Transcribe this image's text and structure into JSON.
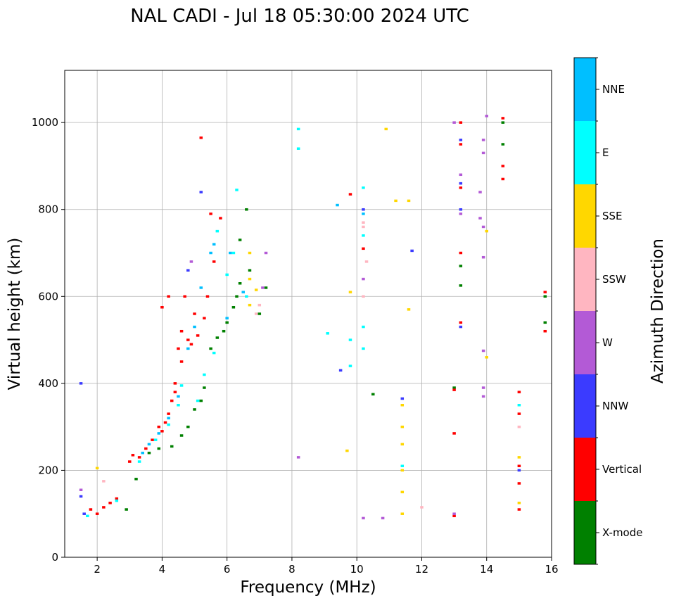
{
  "chart_data": {
    "type": "scatter",
    "title": "NAL CADI - Jul 18 05:30:00 2024 UTC",
    "xlabel": "Frequency (MHz)",
    "ylabel": "Virtual height (km)",
    "xlim": [
      1,
      16
    ],
    "ylim": [
      0,
      1120
    ],
    "xticks": [
      2,
      4,
      6,
      8,
      10,
      12,
      14,
      16
    ],
    "yticks": [
      0,
      200,
      400,
      600,
      800,
      1000
    ],
    "grid": true,
    "colorbar": {
      "label": "Azimuth Direction",
      "categories": [
        "X-mode",
        "Vertical",
        "NNW",
        "W",
        "SSW",
        "SSE",
        "E",
        "NNE"
      ],
      "colors": [
        "#008000",
        "#ff0000",
        "#3b3bff",
        "#b35ad6",
        "#ffb6c1",
        "#ffd700",
        "#00ffff",
        "#00bfff"
      ]
    },
    "series": [
      {
        "name": "X-mode",
        "points": [
          [
            2.9,
            110
          ],
          [
            3.2,
            180
          ],
          [
            3.6,
            240
          ],
          [
            3.9,
            250
          ],
          [
            4.3,
            255
          ],
          [
            4.6,
            280
          ],
          [
            4.8,
            300
          ],
          [
            5.0,
            340
          ],
          [
            5.2,
            360
          ],
          [
            5.3,
            390
          ],
          [
            5.5,
            480
          ],
          [
            5.7,
            505
          ],
          [
            5.9,
            520
          ],
          [
            6.0,
            540
          ],
          [
            6.2,
            575
          ],
          [
            6.3,
            600
          ],
          [
            6.4,
            630
          ],
          [
            6.4,
            730
          ],
          [
            6.6,
            800
          ],
          [
            6.7,
            660
          ],
          [
            7.0,
            560
          ],
          [
            7.2,
            620
          ],
          [
            10.5,
            375
          ],
          [
            13.0,
            390
          ],
          [
            13.2,
            625
          ],
          [
            13.2,
            670
          ],
          [
            14.5,
            1000
          ],
          [
            14.5,
            950
          ],
          [
            15.8,
            600
          ],
          [
            15.8,
            540
          ]
        ]
      },
      {
        "name": "Vertical",
        "points": [
          [
            1.8,
            110
          ],
          [
            2.0,
            100
          ],
          [
            2.2,
            115
          ],
          [
            2.4,
            125
          ],
          [
            2.6,
            135
          ],
          [
            3.0,
            220
          ],
          [
            3.1,
            235
          ],
          [
            3.3,
            230
          ],
          [
            3.5,
            250
          ],
          [
            3.7,
            270
          ],
          [
            3.9,
            300
          ],
          [
            4.0,
            290
          ],
          [
            4.0,
            575
          ],
          [
            4.1,
            310
          ],
          [
            4.2,
            330
          ],
          [
            4.2,
            600
          ],
          [
            4.3,
            360
          ],
          [
            4.4,
            380
          ],
          [
            4.4,
            400
          ],
          [
            4.5,
            480
          ],
          [
            4.6,
            520
          ],
          [
            4.6,
            450
          ],
          [
            4.7,
            600
          ],
          [
            4.8,
            500
          ],
          [
            4.9,
            490
          ],
          [
            5.0,
            560
          ],
          [
            5.1,
            510
          ],
          [
            5.2,
            965
          ],
          [
            5.3,
            550
          ],
          [
            5.4,
            600
          ],
          [
            5.5,
            790
          ],
          [
            5.6,
            680
          ],
          [
            5.8,
            780
          ],
          [
            9.8,
            835
          ],
          [
            10.2,
            710
          ],
          [
            13.0,
            95
          ],
          [
            13.0,
            285
          ],
          [
            13.0,
            385
          ],
          [
            13.2,
            700
          ],
          [
            13.2,
            850
          ],
          [
            13.2,
            950
          ],
          [
            13.2,
            1000
          ],
          [
            13.2,
            540
          ],
          [
            14.5,
            870
          ],
          [
            14.5,
            900
          ],
          [
            14.5,
            1010
          ],
          [
            15.0,
            110
          ],
          [
            15.0,
            170
          ],
          [
            15.0,
            210
          ],
          [
            15.0,
            330
          ],
          [
            15.0,
            380
          ],
          [
            15.8,
            520
          ],
          [
            15.8,
            610
          ]
        ]
      },
      {
        "name": "NNW",
        "points": [
          [
            1.5,
            140
          ],
          [
            1.5,
            400
          ],
          [
            1.6,
            100
          ],
          [
            4.8,
            660
          ],
          [
            5.2,
            840
          ],
          [
            9.5,
            430
          ],
          [
            10.2,
            800
          ],
          [
            11.4,
            365
          ],
          [
            11.7,
            705
          ],
          [
            13.2,
            800
          ],
          [
            13.2,
            860
          ],
          [
            13.2,
            960
          ],
          [
            13.2,
            530
          ],
          [
            15.0,
            200
          ]
        ]
      },
      {
        "name": "W",
        "points": [
          [
            1.5,
            155
          ],
          [
            4.9,
            680
          ],
          [
            7.1,
            620
          ],
          [
            7.2,
            700
          ],
          [
            8.2,
            230
          ],
          [
            10.2,
            90
          ],
          [
            10.2,
            640
          ],
          [
            10.8,
            90
          ],
          [
            13.0,
            1000
          ],
          [
            13.0,
            100
          ],
          [
            13.2,
            880
          ],
          [
            13.2,
            790
          ],
          [
            13.8,
            780
          ],
          [
            13.8,
            840
          ],
          [
            13.9,
            370
          ],
          [
            13.9,
            390
          ],
          [
            13.9,
            475
          ],
          [
            13.9,
            760
          ],
          [
            13.9,
            690
          ],
          [
            13.9,
            930
          ],
          [
            13.9,
            960
          ],
          [
            14.0,
            1015
          ]
        ]
      },
      {
        "name": "SSW",
        "points": [
          [
            2.2,
            175
          ],
          [
            6.9,
            560
          ],
          [
            7.0,
            580
          ],
          [
            10.2,
            600
          ],
          [
            10.2,
            760
          ],
          [
            10.2,
            770
          ],
          [
            10.3,
            680
          ],
          [
            12.0,
            115
          ],
          [
            15.0,
            300
          ]
        ]
      },
      {
        "name": "SSE",
        "points": [
          [
            2.0,
            205
          ],
          [
            6.7,
            580
          ],
          [
            6.7,
            640
          ],
          [
            6.7,
            700
          ],
          [
            6.9,
            615
          ],
          [
            9.7,
            245
          ],
          [
            9.8,
            610
          ],
          [
            10.9,
            985
          ],
          [
            11.2,
            820
          ],
          [
            11.4,
            100
          ],
          [
            11.4,
            150
          ],
          [
            11.4,
            200
          ],
          [
            11.4,
            260
          ],
          [
            11.4,
            300
          ],
          [
            11.4,
            350
          ],
          [
            11.6,
            570
          ],
          [
            11.6,
            820
          ],
          [
            14.0,
            460
          ],
          [
            14.0,
            750
          ],
          [
            15.0,
            230
          ],
          [
            15.0,
            125
          ]
        ]
      },
      {
        "name": "E",
        "points": [
          [
            1.7,
            95
          ],
          [
            2.6,
            130
          ],
          [
            3.3,
            220
          ],
          [
            3.8,
            270
          ],
          [
            4.2,
            305
          ],
          [
            4.5,
            350
          ],
          [
            4.6,
            395
          ],
          [
            5.1,
            360
          ],
          [
            5.3,
            420
          ],
          [
            5.6,
            470
          ],
          [
            5.7,
            750
          ],
          [
            6.0,
            650
          ],
          [
            6.2,
            700
          ],
          [
            6.3,
            845
          ],
          [
            6.6,
            600
          ],
          [
            8.2,
            985
          ],
          [
            8.2,
            940
          ],
          [
            9.1,
            515
          ],
          [
            9.8,
            500
          ],
          [
            9.8,
            440
          ],
          [
            10.2,
            850
          ],
          [
            10.2,
            740
          ],
          [
            10.2,
            530
          ],
          [
            10.2,
            480
          ],
          [
            11.4,
            210
          ],
          [
            15.0,
            350
          ]
        ]
      },
      {
        "name": "NNE",
        "points": [
          [
            3.4,
            240
          ],
          [
            3.6,
            260
          ],
          [
            3.9,
            285
          ],
          [
            4.2,
            320
          ],
          [
            4.5,
            370
          ],
          [
            4.8,
            480
          ],
          [
            5.0,
            530
          ],
          [
            5.2,
            620
          ],
          [
            5.5,
            700
          ],
          [
            5.6,
            720
          ],
          [
            6.0,
            550
          ],
          [
            6.1,
            700
          ],
          [
            6.5,
            610
          ],
          [
            9.4,
            810
          ],
          [
            10.2,
            790
          ]
        ]
      }
    ]
  }
}
